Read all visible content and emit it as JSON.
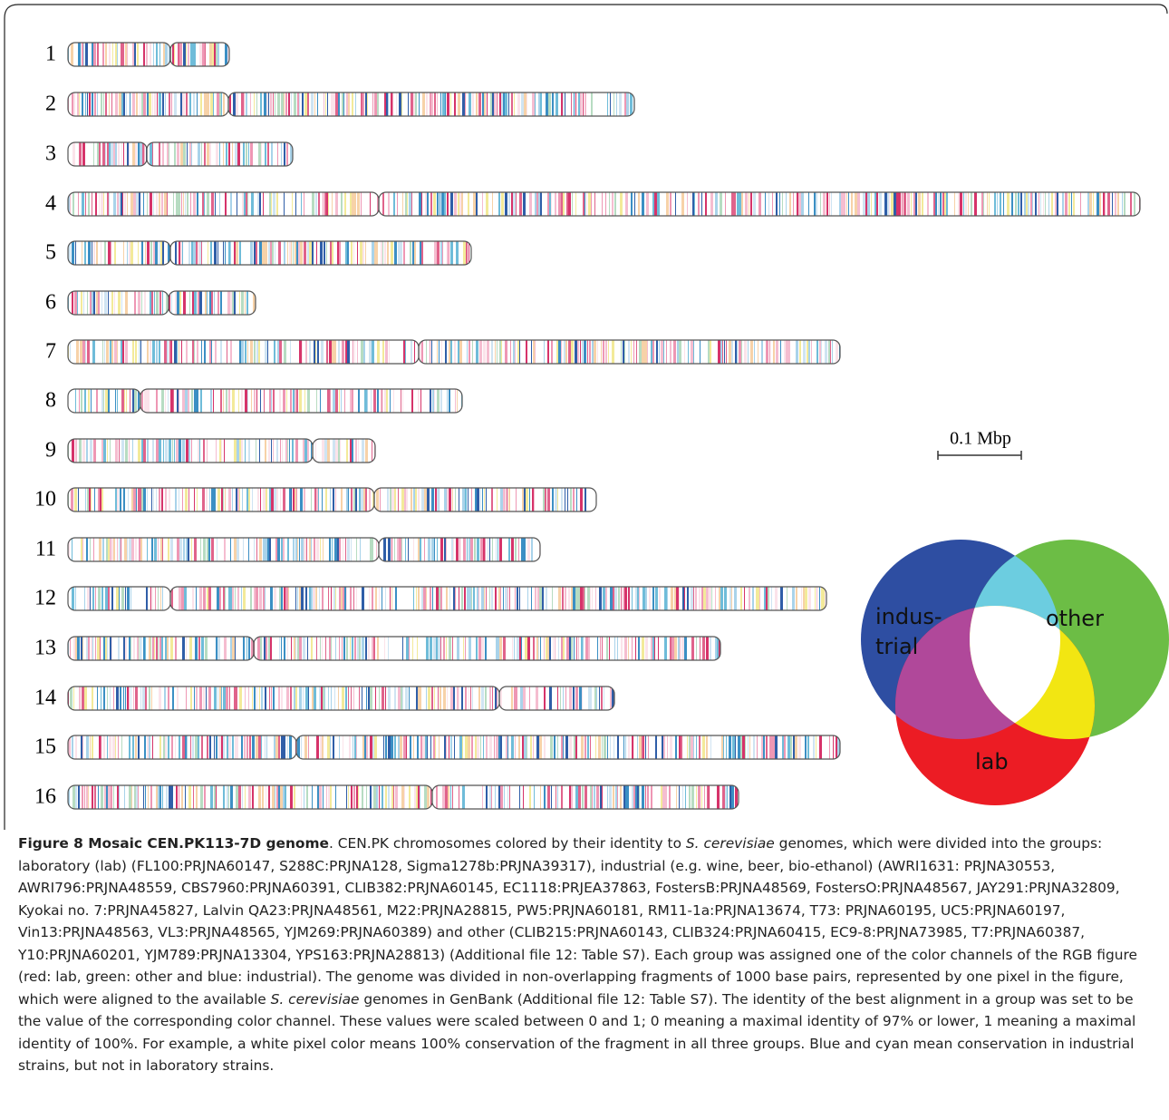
{
  "figure": {
    "chromosomes": {
      "labels": [
        "1",
        "2",
        "3",
        "4",
        "5",
        "6",
        "7",
        "8",
        "9",
        "10",
        "11",
        "12",
        "13",
        "14",
        "15",
        "16"
      ]
    },
    "scale_bar": {
      "label": "0.1 Mbp"
    },
    "venn": {
      "industrial_line1": "indus-",
      "industrial_line2": "trial",
      "other": "other",
      "lab": "lab"
    }
  },
  "caption": {
    "title": "Figure 8 Mosaic CEN.PK113-7D genome",
    "text": [
      ". CEN.PK chromosomes colored by their identity to ",
      "S. cerevisiae",
      " genomes, which were divided into the groups: laboratory (lab) (FL100:PRJNA60147, S288C:PRJNA128, Sigma1278b:PRJNA39317), industrial (e.g. wine, beer, bio-ethanol) (AWRI1631: PRJNA30553, AWRI796:PRJNA48559, CBS7960:PRJNA60391, CLIB382:PRJNA60145, EC1118:PRJEA37863, FostersB:PRJNA48569, FostersO:PRJNA48567, JAY291:PRJNA32809, Kyokai no. 7:PRJNA45827, Lalvin QA23:PRJNA48561, M22:PRJNA28815, PW5:PRJNA60181, RM11-1a:PRJNA13674, T73: PRJNA60195, UC5:PRJNA60197, Vin13:PRJNA48563, VL3:PRJNA48565, YJM269:PRJNA60389) and other (CLIB215:PRJNA60143, CLIB324:PRJNA60415, EC9-8:PRJNA73985, T7:PRJNA60387, Y10:PRJNA60201, YJM789:PRJNA13304, YPS163:PRJNA28813) (Additional file 12: Table S7). Each group was assigned one of the color channels of the RGB figure (red: lab, green: other and blue: industrial). The genome was divided in non-overlapping fragments of 1000 base pairs, represented by one pixel in the figure, which were aligned to the available ",
      "S. cerevisiae",
      " genomes in GenBank (Additional file 12: Table S7). The identity of the best alignment in a group was set to be the value of the corresponding color channel. These values were scaled between 0 and 1; 0 meaning a maximal identity of 97% or lower, 1 meaning a maximal identity of 100%. For example, a white pixel color means 100% conservation of the fragment in all three groups. Blue and cyan mean conservation in industrial strains, but not in laboratory strains."
    ]
  }
}
